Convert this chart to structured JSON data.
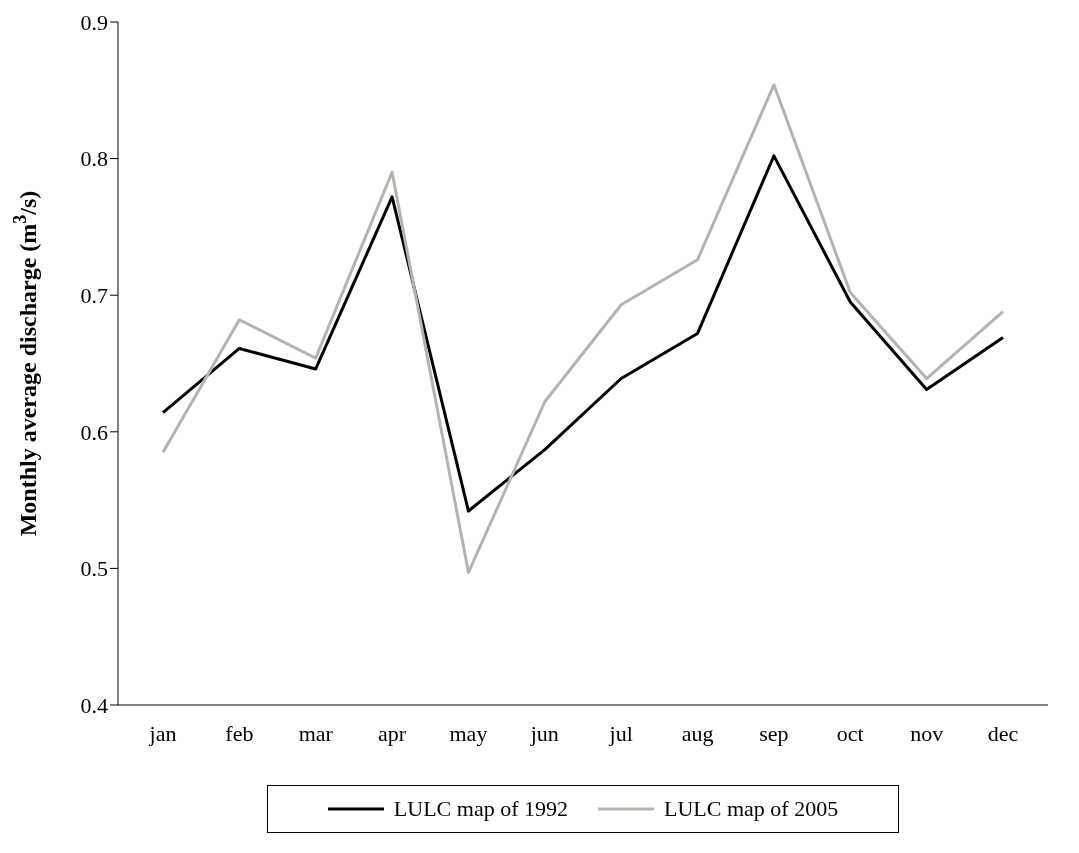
{
  "chart_data": {
    "type": "line",
    "ylabel": "Monthly average discharge (m$^{3}$/s)",
    "categories": [
      "jan",
      "feb",
      "mar",
      "apr",
      "may",
      "jun",
      "jul",
      "aug",
      "sep",
      "oct",
      "nov",
      "dec"
    ],
    "series": [
      {
        "name": "LULC map of 1992",
        "color": "#000000",
        "values": [
          0.614,
          0.661,
          0.646,
          0.772,
          0.542,
          0.587,
          0.639,
          0.672,
          0.802,
          0.695,
          0.631,
          0.669
        ]
      },
      {
        "name": "LULC map of 2005",
        "color": "#b4b4ac",
        "values": [
          0.585,
          0.682,
          0.654,
          0.79,
          0.497,
          0.622,
          0.693,
          0.726,
          0.854,
          0.702,
          0.639,
          0.688
        ]
      }
    ],
    "ylim": [
      0.4,
      0.9
    ],
    "yticks": [
      0.4,
      0.5,
      0.6,
      0.7,
      0.8,
      0.9
    ],
    "grid": false,
    "legend": "bottom",
    "marker": "none",
    "line_style": "solid"
  }
}
